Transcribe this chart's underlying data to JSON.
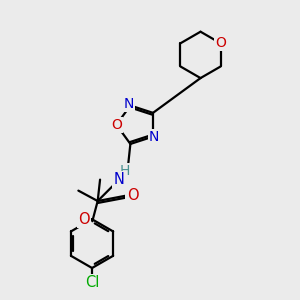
{
  "bg_color": "#ebebeb",
  "atom_colors": {
    "C": "#000000",
    "N": "#0000cc",
    "O": "#cc0000",
    "H": "#4a9090",
    "Cl": "#00aa00"
  },
  "bond_color": "#000000",
  "bond_width": 1.6,
  "figsize": [
    3.0,
    3.0
  ],
  "dpi": 100
}
